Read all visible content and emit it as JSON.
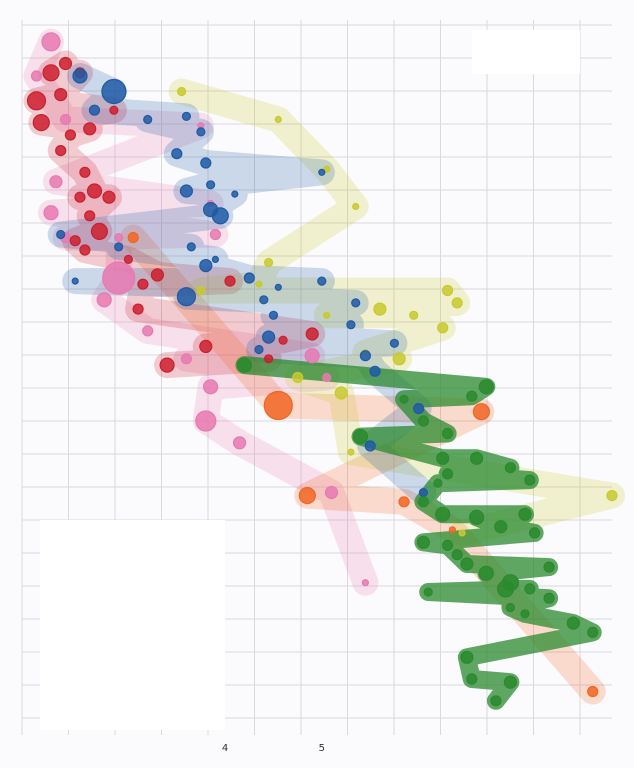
{
  "chart_data": {
    "type": "scatter",
    "title": "",
    "xlabel": "",
    "ylabel": "",
    "xlim": [
      1.9,
      8.0
    ],
    "ylim": [
      0,
      11.5
    ],
    "x_ticks": [
      {
        "value": 4,
        "label": "4"
      },
      {
        "value": 5,
        "label": "5"
      }
    ],
    "grid": true,
    "series": [
      {
        "color": "#e879b1",
        "points": [
          [
            2.2,
            11.15,
            9
          ],
          [
            2.05,
            10.6,
            5
          ],
          [
            2.35,
            9.9,
            5
          ],
          [
            2.25,
            8.9,
            6
          ],
          [
            2.2,
            8.4,
            7
          ],
          [
            2.35,
            8.0,
            5
          ],
          [
            2.9,
            8.0,
            4
          ],
          [
            3.9,
            8.05,
            5
          ],
          [
            2.9,
            7.35,
            16
          ],
          [
            2.75,
            7.0,
            7
          ],
          [
            3.2,
            6.5,
            5
          ],
          [
            3.6,
            6.05,
            5
          ],
          [
            3.85,
            5.6,
            7
          ],
          [
            4.9,
            6.1,
            7
          ],
          [
            3.8,
            5.05,
            10
          ],
          [
            4.15,
            4.7,
            6
          ],
          [
            5.1,
            3.9,
            6
          ],
          [
            5.45,
            2.45,
            3
          ],
          [
            3.75,
            9.8,
            3
          ],
          [
            3.85,
            8.55,
            3
          ],
          [
            5.05,
            5.75,
            4
          ]
        ]
      },
      {
        "color": "#cc1f2e",
        "points": [
          [
            2.2,
            10.65,
            8
          ],
          [
            2.35,
            10.8,
            6
          ],
          [
            2.5,
            10.65,
            5
          ],
          [
            2.05,
            10.2,
            9
          ],
          [
            2.3,
            10.3,
            6
          ],
          [
            2.1,
            9.85,
            8
          ],
          [
            2.4,
            9.65,
            5
          ],
          [
            2.3,
            9.4,
            5
          ],
          [
            2.6,
            9.75,
            6
          ],
          [
            2.85,
            10.05,
            4
          ],
          [
            2.55,
            9.05,
            5
          ],
          [
            2.65,
            8.75,
            7
          ],
          [
            2.5,
            8.65,
            5
          ],
          [
            2.8,
            8.65,
            6
          ],
          [
            2.6,
            8.35,
            5
          ],
          [
            2.7,
            8.1,
            8
          ],
          [
            2.45,
            7.95,
            5
          ],
          [
            2.55,
            7.8,
            5
          ],
          [
            3.0,
            7.65,
            4
          ],
          [
            3.15,
            7.25,
            5
          ],
          [
            3.3,
            7.4,
            6
          ],
          [
            3.1,
            6.85,
            5
          ],
          [
            3.8,
            6.25,
            6
          ],
          [
            4.6,
            6.35,
            4
          ],
          [
            3.4,
            5.95,
            7
          ],
          [
            4.05,
            7.3,
            5
          ],
          [
            4.9,
            6.45,
            6
          ],
          [
            4.45,
            6.05,
            4
          ]
        ]
      },
      {
        "color": "#f26522",
        "points": [
          [
            3.05,
            8.0,
            5
          ],
          [
            4.55,
            5.3,
            14
          ],
          [
            6.65,
            5.2,
            8
          ],
          [
            4.85,
            3.85,
            8
          ],
          [
            5.85,
            3.75,
            5
          ],
          [
            6.35,
            3.3,
            3
          ],
          [
            7.8,
            0.7,
            5
          ]
        ]
      },
      {
        "color": "#c9c92e",
        "points": [
          [
            3.55,
            10.35,
            4
          ],
          [
            4.55,
            9.9,
            3
          ],
          [
            5.05,
            9.1,
            3
          ],
          [
            4.45,
            7.6,
            4
          ],
          [
            3.75,
            7.15,
            4
          ],
          [
            4.35,
            7.25,
            3
          ],
          [
            5.05,
            6.75,
            3
          ],
          [
            5.6,
            6.85,
            6
          ],
          [
            5.45,
            6.15,
            3
          ],
          [
            5.95,
            6.75,
            4
          ],
          [
            6.3,
            7.15,
            5
          ],
          [
            6.4,
            6.95,
            5
          ],
          [
            6.25,
            6.55,
            5
          ],
          [
            5.8,
            6.05,
            6
          ],
          [
            4.75,
            5.75,
            5
          ],
          [
            5.2,
            5.5,
            6
          ],
          [
            5.3,
            4.55,
            3
          ],
          [
            6.45,
            3.25,
            3
          ],
          [
            8.0,
            3.85,
            5
          ],
          [
            5.35,
            8.5,
            3
          ]
        ]
      },
      {
        "color": "#1f5aa6",
        "points": [
          [
            2.5,
            10.6,
            7
          ],
          [
            2.85,
            10.35,
            12
          ],
          [
            2.65,
            10.05,
            5
          ],
          [
            3.2,
            9.9,
            4
          ],
          [
            3.6,
            9.95,
            4
          ],
          [
            3.75,
            9.7,
            4
          ],
          [
            3.5,
            9.35,
            5
          ],
          [
            3.8,
            9.2,
            5
          ],
          [
            3.85,
            8.85,
            4
          ],
          [
            3.6,
            8.75,
            6
          ],
          [
            3.85,
            8.45,
            7
          ],
          [
            3.95,
            8.35,
            8
          ],
          [
            4.1,
            8.7,
            3
          ],
          [
            3.8,
            7.55,
            6
          ],
          [
            3.65,
            7.85,
            4
          ],
          [
            3.9,
            7.65,
            3
          ],
          [
            4.25,
            7.35,
            5
          ],
          [
            3.6,
            7.05,
            9
          ],
          [
            4.4,
            7.0,
            4
          ],
          [
            4.45,
            6.4,
            6
          ],
          [
            4.35,
            6.2,
            4
          ],
          [
            4.5,
            6.75,
            4
          ],
          [
            4.55,
            7.2,
            3
          ],
          [
            5.0,
            7.3,
            4
          ],
          [
            5.35,
            6.95,
            4
          ],
          [
            5.3,
            6.6,
            4
          ],
          [
            5.75,
            6.3,
            4
          ],
          [
            5.45,
            6.1,
            5
          ],
          [
            5.55,
            5.85,
            5
          ],
          [
            6.0,
            5.25,
            5
          ],
          [
            6.05,
            3.9,
            4
          ],
          [
            5.5,
            4.65,
            5
          ],
          [
            2.3,
            8.05,
            4
          ],
          [
            2.9,
            7.85,
            4
          ],
          [
            2.45,
            7.3,
            3
          ],
          [
            5.0,
            9.05,
            3
          ]
        ]
      },
      {
        "color": "#2a8a2e",
        "points": [
          [
            4.2,
            5.95,
            7
          ],
          [
            5.4,
            4.8,
            7
          ],
          [
            6.05,
            5.05,
            5
          ],
          [
            6.3,
            4.85,
            5
          ],
          [
            6.55,
            5.45,
            5
          ],
          [
            6.7,
            5.6,
            7
          ],
          [
            6.25,
            4.45,
            6
          ],
          [
            6.3,
            4.2,
            5
          ],
          [
            6.6,
            4.45,
            6
          ],
          [
            6.95,
            4.3,
            5
          ],
          [
            7.15,
            4.1,
            5
          ],
          [
            6.05,
            3.75,
            5
          ],
          [
            6.25,
            3.55,
            7
          ],
          [
            6.6,
            3.5,
            7
          ],
          [
            6.85,
            3.35,
            6
          ],
          [
            7.1,
            3.55,
            6
          ],
          [
            7.2,
            3.25,
            5
          ],
          [
            6.05,
            3.1,
            6
          ],
          [
            6.3,
            3.05,
            5
          ],
          [
            6.4,
            2.9,
            5
          ],
          [
            6.5,
            2.75,
            6
          ],
          [
            6.7,
            2.6,
            7
          ],
          [
            6.95,
            2.45,
            8
          ],
          [
            6.9,
            2.35,
            8
          ],
          [
            7.15,
            2.35,
            5
          ],
          [
            7.35,
            2.2,
            5
          ],
          [
            6.95,
            2.05,
            4
          ],
          [
            7.1,
            1.95,
            4
          ],
          [
            7.6,
            1.8,
            6
          ],
          [
            7.35,
            2.7,
            5
          ],
          [
            7.8,
            1.65,
            5
          ],
          [
            6.5,
            1.25,
            6
          ],
          [
            6.55,
            0.9,
            5
          ],
          [
            6.95,
            0.85,
            6
          ],
          [
            6.1,
            2.3,
            4
          ],
          [
            6.8,
            0.55,
            5
          ],
          [
            5.85,
            5.4,
            4
          ],
          [
            6.2,
            4.05,
            4
          ]
        ]
      }
    ]
  }
}
